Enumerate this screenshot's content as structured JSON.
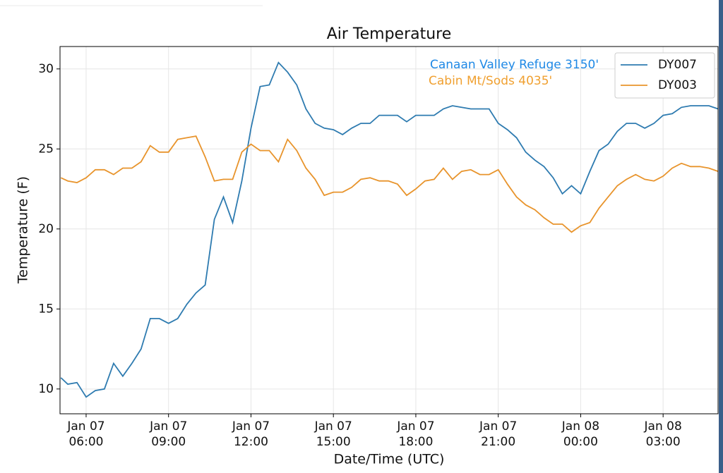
{
  "chart_data": {
    "type": "line",
    "title": "Air Temperature",
    "xlabel": "Date/Time (UTC)",
    "ylabel": "Temperature (F)",
    "annotations": [
      {
        "text": "Canaan Valley Refuge 3150'",
        "color": "#1e88e5"
      },
      {
        "text": "Cabin Mt/Sods 4035'",
        "color": "#f0a030"
      }
    ],
    "legend": "upper right",
    "grid": true,
    "xlim": [
      "Jan 07 05:03",
      "Jan 08 05:00"
    ],
    "xticks": [
      {
        "value": "Jan 07 06:00",
        "label": [
          "Jan 07",
          "06:00"
        ]
      },
      {
        "value": "Jan 07 09:00",
        "label": [
          "Jan 07",
          "09:00"
        ]
      },
      {
        "value": "Jan 07 12:00",
        "label": [
          "Jan 07",
          "12:00"
        ]
      },
      {
        "value": "Jan 07 15:00",
        "label": [
          "Jan 07",
          "15:00"
        ]
      },
      {
        "value": "Jan 07 18:00",
        "label": [
          "Jan 07",
          "18:00"
        ]
      },
      {
        "value": "Jan 07 21:00",
        "label": [
          "Jan 07",
          "21:00"
        ]
      },
      {
        "value": "Jan 08 00:00",
        "label": [
          "Jan 08",
          "00:00"
        ]
      },
      {
        "value": "Jan 08 03:00",
        "label": [
          "Jan 08",
          "03:00"
        ]
      }
    ],
    "ylim": [
      8.45,
      31.4
    ],
    "yticks": [
      10,
      15,
      20,
      25,
      30
    ],
    "x": [
      "Jan 07 05:05",
      "Jan 07 05:20",
      "Jan 07 05:40",
      "Jan 07 06:00",
      "Jan 07 06:20",
      "Jan 07 06:40",
      "Jan 07 07:00",
      "Jan 07 07:20",
      "Jan 07 07:40",
      "Jan 07 08:00",
      "Jan 07 08:20",
      "Jan 07 08:40",
      "Jan 07 09:00",
      "Jan 07 09:20",
      "Jan 07 09:40",
      "Jan 07 10:00",
      "Jan 07 10:20",
      "Jan 07 10:40",
      "Jan 07 11:00",
      "Jan 07 11:20",
      "Jan 07 11:40",
      "Jan 07 12:00",
      "Jan 07 12:20",
      "Jan 07 12:40",
      "Jan 07 13:00",
      "Jan 07 13:20",
      "Jan 07 13:40",
      "Jan 07 14:00",
      "Jan 07 14:20",
      "Jan 07 14:40",
      "Jan 07 15:00",
      "Jan 07 15:20",
      "Jan 07 15:40",
      "Jan 07 16:00",
      "Jan 07 16:20",
      "Jan 07 16:40",
      "Jan 07 17:00",
      "Jan 07 17:20",
      "Jan 07 17:40",
      "Jan 07 18:00",
      "Jan 07 18:20",
      "Jan 07 18:40",
      "Jan 07 19:00",
      "Jan 07 19:20",
      "Jan 07 19:40",
      "Jan 07 20:00",
      "Jan 07 20:20",
      "Jan 07 20:40",
      "Jan 07 21:00",
      "Jan 07 21:20",
      "Jan 07 21:40",
      "Jan 07 22:00",
      "Jan 07 22:20",
      "Jan 07 22:40",
      "Jan 07 23:00",
      "Jan 07 23:20",
      "Jan 07 23:40",
      "Jan 08 00:00",
      "Jan 08 00:20",
      "Jan 08 00:40",
      "Jan 08 01:00",
      "Jan 08 01:20",
      "Jan 08 01:40",
      "Jan 08 02:00",
      "Jan 08 02:20",
      "Jan 08 02:40",
      "Jan 08 03:00",
      "Jan 08 03:20",
      "Jan 08 03:40",
      "Jan 08 04:00",
      "Jan 08 04:20",
      "Jan 08 04:40",
      "Jan 08 05:00"
    ],
    "series": [
      {
        "name": "DY007",
        "color": "#2e7bb0",
        "values": [
          10.7,
          10.3,
          10.4,
          9.5,
          9.9,
          10.0,
          11.6,
          10.8,
          11.6,
          12.5,
          14.4,
          14.4,
          14.1,
          14.4,
          15.3,
          16.0,
          16.5,
          20.6,
          22.0,
          20.4,
          23.0,
          26.3,
          28.9,
          29.0,
          30.4,
          29.8,
          29.0,
          27.5,
          26.6,
          26.3,
          26.2,
          25.9,
          26.3,
          26.6,
          26.6,
          27.1,
          27.1,
          27.1,
          26.7,
          27.1,
          27.1,
          27.1,
          27.5,
          27.7,
          27.6,
          27.5,
          27.5,
          27.5,
          26.6,
          26.2,
          25.7,
          24.8,
          24.3,
          23.9,
          23.2,
          22.2,
          22.7,
          22.2,
          23.6,
          24.9,
          25.3,
          26.1,
          26.6,
          26.6,
          26.3,
          26.6,
          27.1,
          27.2,
          27.6,
          27.7,
          27.7,
          27.7,
          27.5
        ]
      },
      {
        "name": "DY003",
        "color": "#e8942c",
        "values": [
          23.2,
          23.0,
          22.9,
          23.2,
          23.7,
          23.7,
          23.4,
          23.8,
          23.8,
          24.2,
          25.2,
          24.8,
          24.8,
          25.6,
          25.7,
          25.8,
          24.5,
          23.0,
          23.1,
          23.1,
          24.8,
          25.3,
          24.9,
          24.9,
          24.2,
          25.6,
          24.9,
          23.8,
          23.1,
          22.1,
          22.3,
          22.3,
          22.6,
          23.1,
          23.2,
          23.0,
          23.0,
          22.8,
          22.1,
          22.5,
          23.0,
          23.1,
          23.8,
          23.1,
          23.6,
          23.7,
          23.4,
          23.4,
          23.7,
          22.8,
          22.0,
          21.5,
          21.2,
          20.7,
          20.3,
          20.3,
          19.8,
          20.2,
          20.4,
          21.3,
          22.0,
          22.7,
          23.1,
          23.4,
          23.1,
          23.0,
          23.3,
          23.8,
          24.1,
          23.9,
          23.9,
          23.8,
          23.6
        ]
      }
    ]
  }
}
